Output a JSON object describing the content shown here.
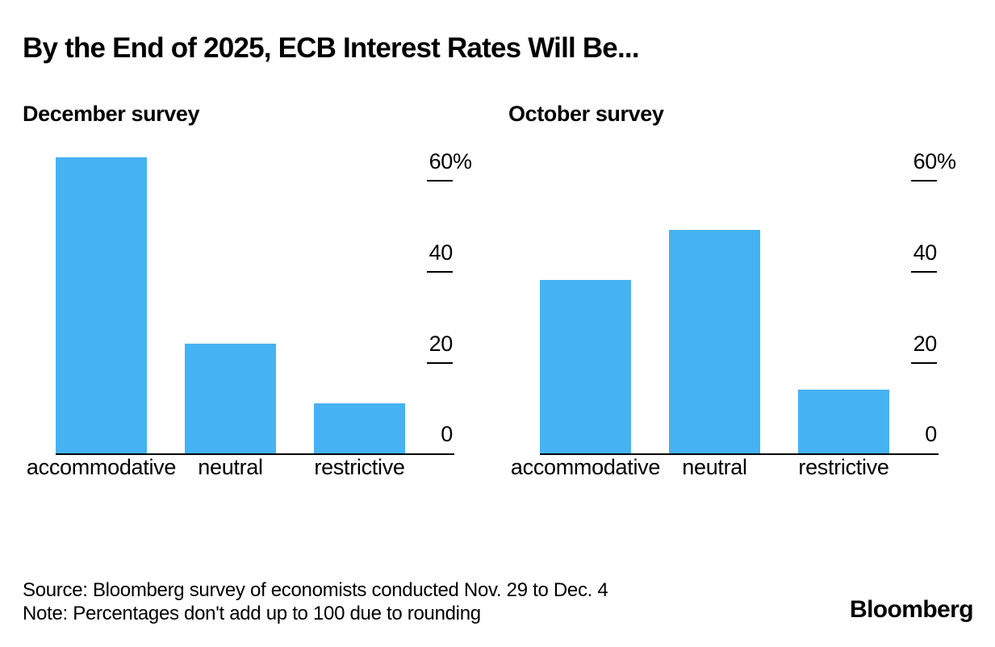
{
  "title": "By the End of 2025, ECB Interest Rates Will Be...",
  "colors": {
    "bar": "#45b2f3",
    "text": "#000000",
    "axis": "#000000",
    "background": "#ffffff"
  },
  "chart_data": [
    {
      "type": "bar",
      "title": "December survey",
      "categories": [
        "accommodative",
        "neutral",
        "restrictive"
      ],
      "values": [
        65,
        24,
        11
      ],
      "unit": "%",
      "ylabel": "",
      "xlabel": "",
      "yticks": [
        0,
        20,
        40,
        60
      ],
      "ylim": [
        0,
        66
      ],
      "axis_side": "right",
      "grid": false,
      "legend": "none"
    },
    {
      "type": "bar",
      "title": "October survey",
      "categories": [
        "accommodative",
        "neutral",
        "restrictive"
      ],
      "values": [
        38,
        49,
        14
      ],
      "unit": "%",
      "ylabel": "",
      "xlabel": "",
      "yticks": [
        0,
        20,
        40,
        60
      ],
      "ylim": [
        0,
        66
      ],
      "axis_side": "right",
      "grid": false,
      "legend": "none"
    }
  ],
  "footer": {
    "source": "Source: Bloomberg survey of economists conducted Nov. 29 to Dec. 4",
    "note": "Note: Percentages don't add up to 100 due to rounding",
    "logo": "Bloomberg"
  }
}
